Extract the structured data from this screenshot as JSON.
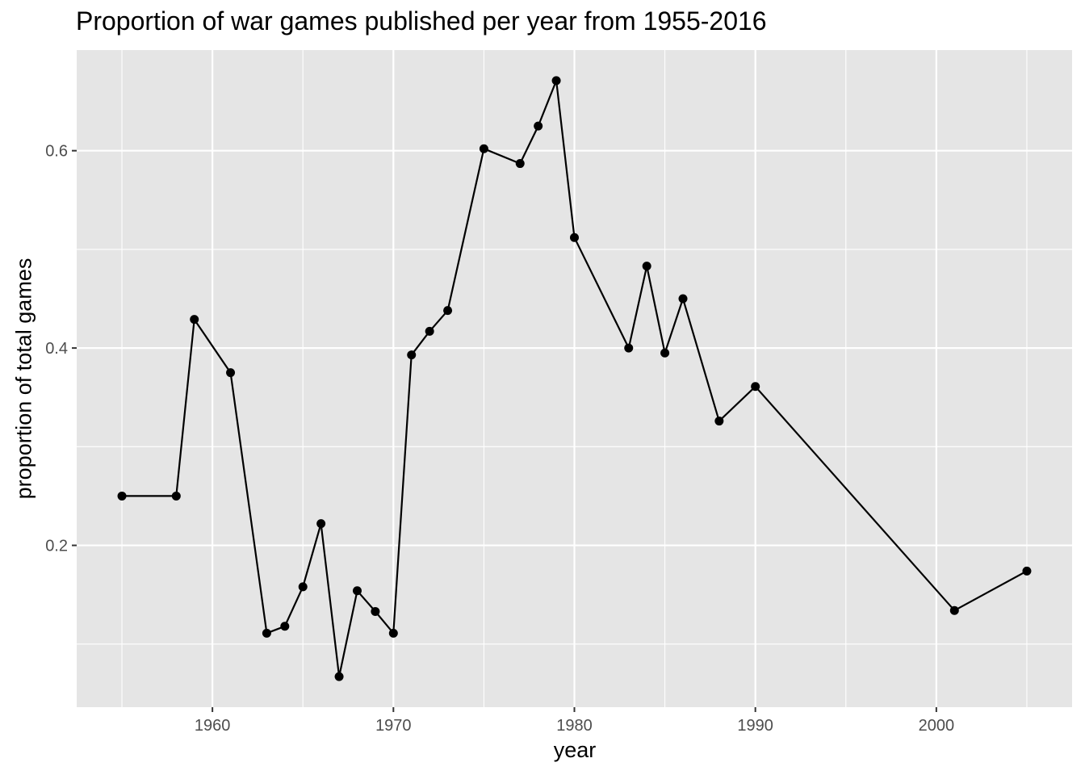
{
  "chart_data": {
    "type": "line",
    "title": "Proportion of war games published per year from 1955-2016",
    "xlabel": "year",
    "ylabel": "proportion of total games",
    "xlim": [
      1952.5,
      2007.5
    ],
    "ylim": [
      0.036,
      0.702
    ],
    "x_ticks": [
      1960,
      1970,
      1980,
      1990,
      2000
    ],
    "x_minor_ticks": [
      1955,
      1965,
      1975,
      1985,
      1995,
      2005
    ],
    "y_ticks": [
      0.2,
      0.4,
      0.6
    ],
    "y_minor_ticks": [
      0.1,
      0.3,
      0.5
    ],
    "y_tick_labels": [
      "0.2",
      "0.4",
      "0.6"
    ],
    "grid": true,
    "legend": "none",
    "colors": {
      "panel": "#e5e5e5",
      "grid": "#ffffff",
      "line": "#000000",
      "point": "#000000"
    },
    "series": [
      {
        "x": [
          1955,
          1958,
          1959,
          1961,
          1963,
          1964,
          1965,
          1966,
          1967,
          1968,
          1969,
          1970,
          1971,
          1972,
          1973,
          1975,
          1977,
          1978,
          1979,
          1980,
          1983,
          1984,
          1985,
          1986,
          1988,
          1990,
          2001,
          2005
        ],
        "y": [
          0.25,
          0.25,
          0.429,
          0.375,
          0.111,
          0.118,
          0.158,
          0.222,
          0.067,
          0.154,
          0.133,
          0.111,
          0.393,
          0.417,
          0.438,
          0.602,
          0.587,
          0.625,
          0.671,
          0.512,
          0.4,
          0.483,
          0.395,
          0.45,
          0.326,
          0.361,
          0.134,
          0.174
        ]
      }
    ]
  }
}
